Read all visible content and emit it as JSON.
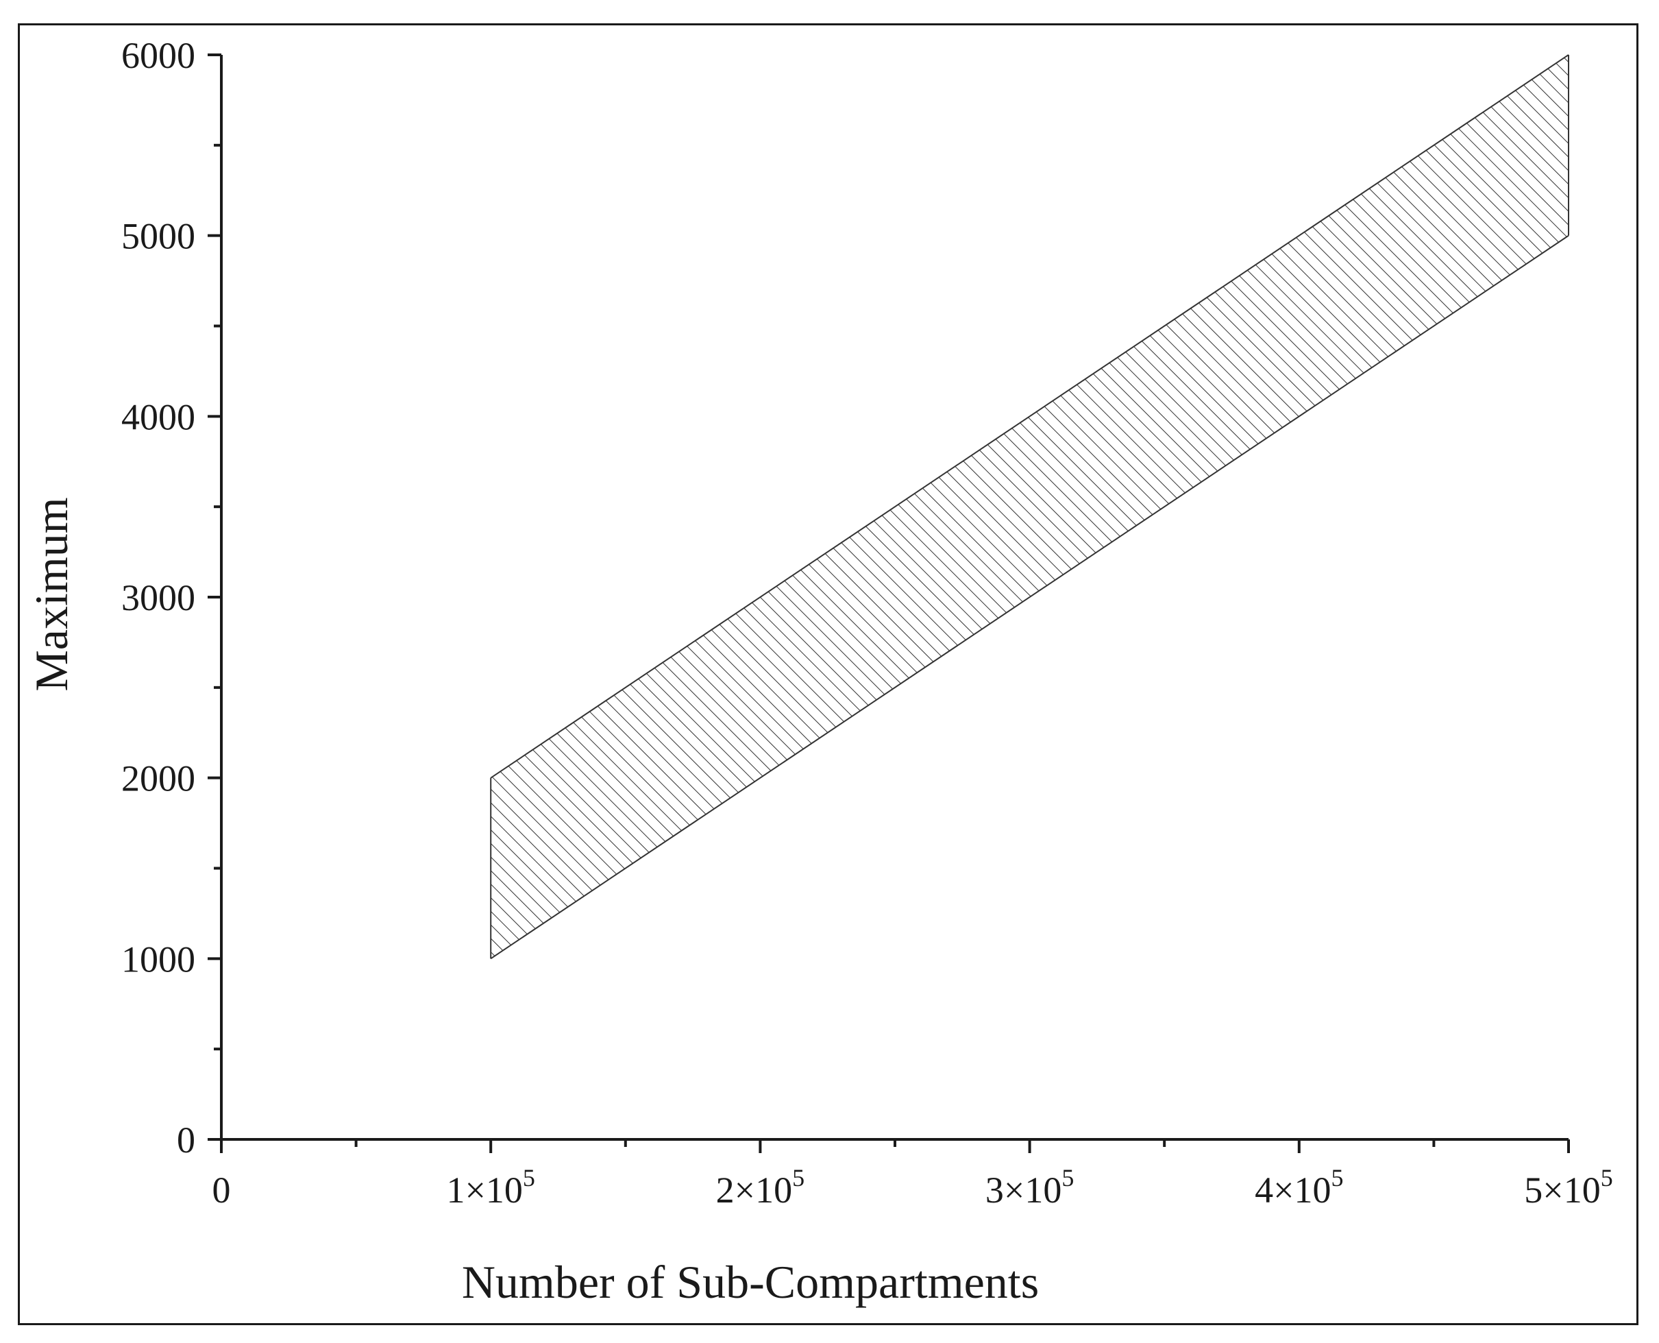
{
  "chart_data": {
    "type": "area",
    "title": "",
    "xlabel": "Number of Sub-Compartments",
    "ylabel": "Maximum",
    "xlim": [
      0,
      500000
    ],
    "ylim": [
      0,
      6000
    ],
    "x_ticks": [
      {
        "value": 0,
        "mantissa": "0",
        "exponent": ""
      },
      {
        "value": 100000,
        "mantissa": "1×10",
        "exponent": "5"
      },
      {
        "value": 200000,
        "mantissa": "2×10",
        "exponent": "5"
      },
      {
        "value": 300000,
        "mantissa": "3×10",
        "exponent": "5"
      },
      {
        "value": 400000,
        "mantissa": "4×10",
        "exponent": "5"
      },
      {
        "value": 500000,
        "mantissa": "5×10",
        "exponent": "5"
      }
    ],
    "x_minor_ticks": [
      50000,
      150000,
      250000,
      350000,
      450000
    ],
    "y_ticks": [
      0,
      1000,
      2000,
      3000,
      4000,
      5000,
      6000
    ],
    "y_minor_ticks": [
      500,
      1500,
      2500,
      3500,
      4500,
      5500
    ],
    "grid": false,
    "legend": "none",
    "fill_pattern": "diagonal-hatch",
    "band": {
      "x": [
        100000,
        500000
      ],
      "lower": [
        1000,
        5000
      ],
      "upper": [
        2000,
        6000
      ]
    },
    "colors": {
      "axis": "#1a1a1a",
      "hatch": "#333333",
      "background": "#ffffff"
    }
  }
}
